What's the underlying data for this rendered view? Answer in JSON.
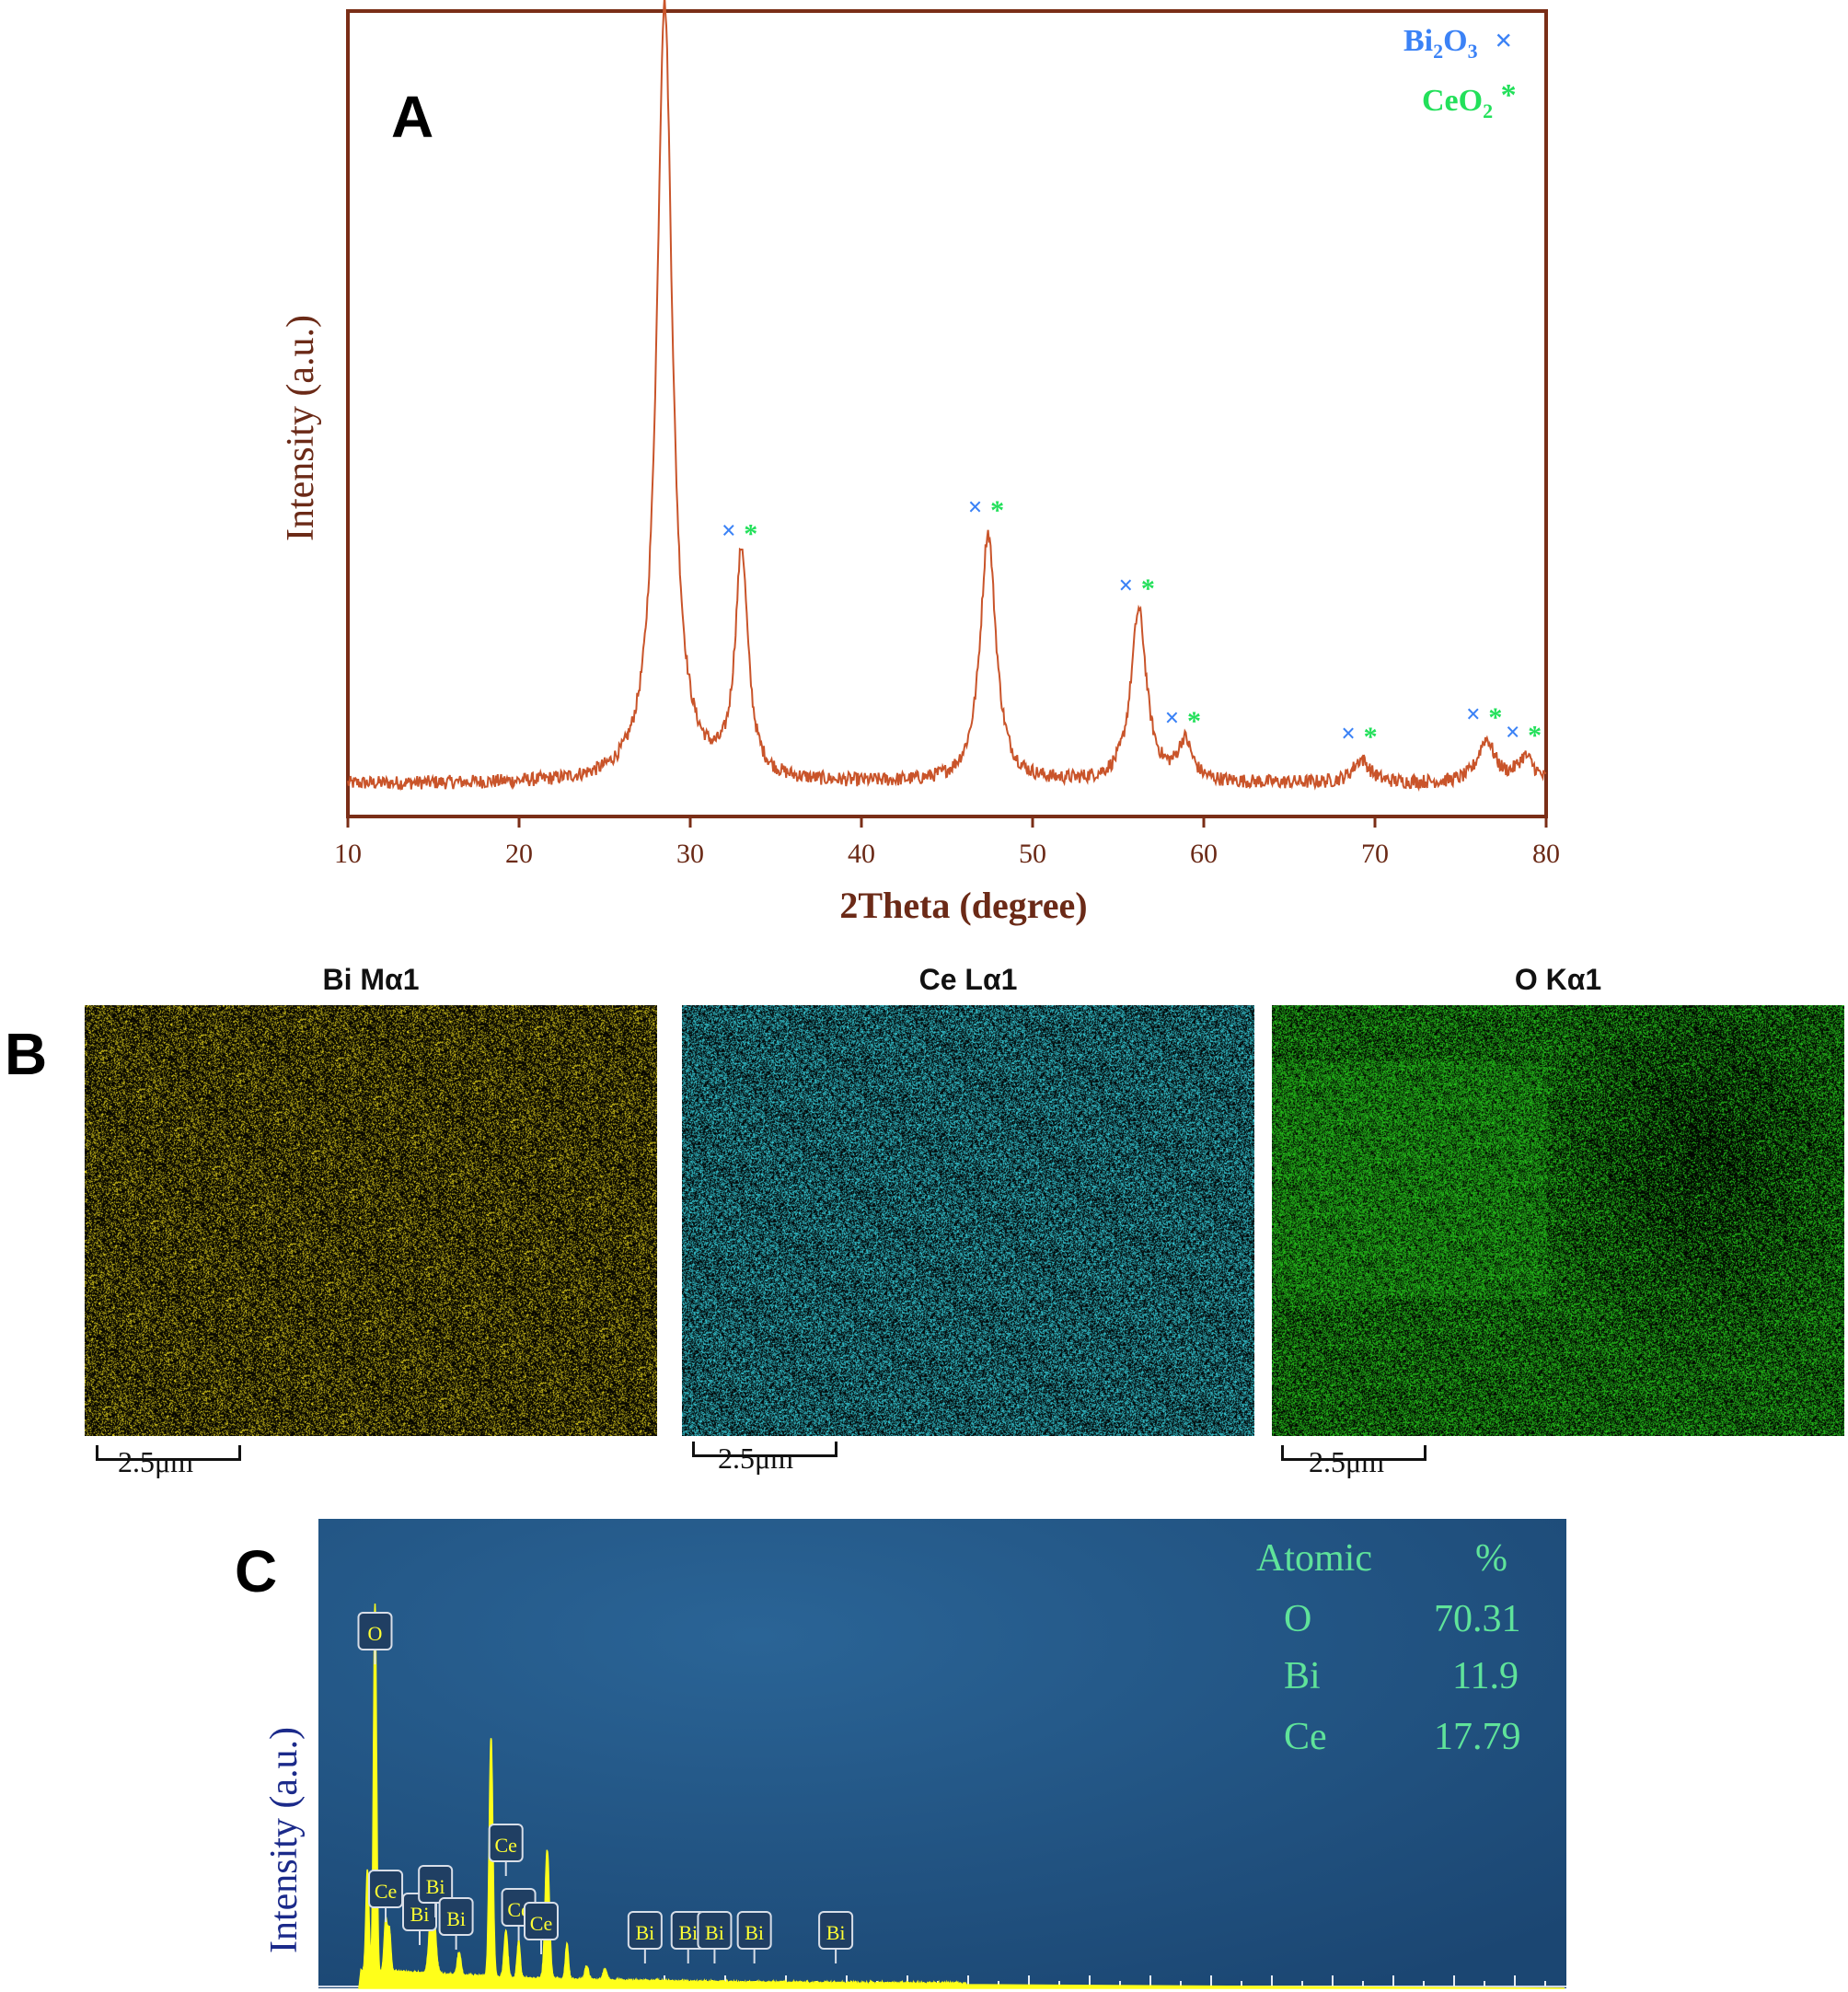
{
  "panels": {
    "a_label": "A",
    "b_label": "B",
    "c_label": "C"
  },
  "chart_data": [
    {
      "type": "line",
      "panel": "A",
      "xlabel": "2Theta (degree)",
      "ylabel": "Intensity (a.u.)",
      "xlim": [
        10,
        80
      ],
      "x_ticks": [
        "10",
        "20",
        "30",
        "40",
        "50",
        "60",
        "70",
        "80"
      ],
      "grid": false,
      "legend": [
        {
          "label_main": "Bi",
          "label_sub1": "2",
          "label_mid": "O",
          "label_sub2": "3",
          "marker": "×",
          "color": "#3b82f6"
        },
        {
          "label_main": "CeO",
          "label_sub1": "2",
          "label_mid": "",
          "label_sub2": "",
          "marker": "*",
          "color": "#22e05a"
        }
      ],
      "legend_position": "top-right",
      "line_color": "#c9542a",
      "baseline": 0.03,
      "peaks": [
        {
          "x": 28.5,
          "height": 1.0,
          "width": 0.55
        },
        {
          "x": 33.0,
          "height": 0.29,
          "width": 0.45
        },
        {
          "x": 47.4,
          "height": 0.32,
          "width": 0.55
        },
        {
          "x": 56.2,
          "height": 0.22,
          "width": 0.55
        },
        {
          "x": 58.9,
          "height": 0.05,
          "width": 0.5
        },
        {
          "x": 69.2,
          "height": 0.03,
          "width": 0.6
        },
        {
          "x": 76.5,
          "height": 0.055,
          "width": 0.6
        },
        {
          "x": 78.8,
          "height": 0.032,
          "width": 0.6
        }
      ]
    },
    {
      "type": "line",
      "panel": "C",
      "ylabel": "Intensity (a.u.)",
      "background": "#1f4e7a",
      "line_color": "#ffff1a",
      "table_header": [
        "Atomic",
        "%"
      ],
      "table_rows": [
        {
          "element": "O",
          "value": "70.31"
        },
        {
          "element": "Bi",
          "value": "11.9"
        },
        {
          "element": "Ce",
          "value": "17.79"
        }
      ],
      "peak_labels": [
        {
          "label": "O",
          "energy": 0.53
        },
        {
          "label": "Ce",
          "energy": 0.88
        },
        {
          "label": "Bi",
          "energy": 2.0
        },
        {
          "label": "Bi",
          "energy": 2.52
        },
        {
          "label": "Bi",
          "energy": 3.2
        },
        {
          "label": "Ce",
          "energy": 4.84
        },
        {
          "label": "Ce",
          "energy": 5.26
        },
        {
          "label": "Ce",
          "energy": 6.0
        },
        {
          "label": "Bi",
          "energy": 9.42
        },
        {
          "label": "Bi",
          "energy": 10.84
        },
        {
          "label": "Bi",
          "energy": 11.71
        },
        {
          "label": "Bi",
          "energy": 13.02
        },
        {
          "label": "Bi",
          "energy": 15.7
        }
      ]
    }
  ],
  "maps": [
    {
      "title": "Bi Mα1",
      "scale": "2.5μm",
      "color": "#d8c81c"
    },
    {
      "title": "Ce Lα1",
      "scale": "2.5μm",
      "color": "#36c9d6"
    },
    {
      "title": "O Kα1",
      "scale": "2.5μm",
      "color": "#26c21c"
    }
  ]
}
